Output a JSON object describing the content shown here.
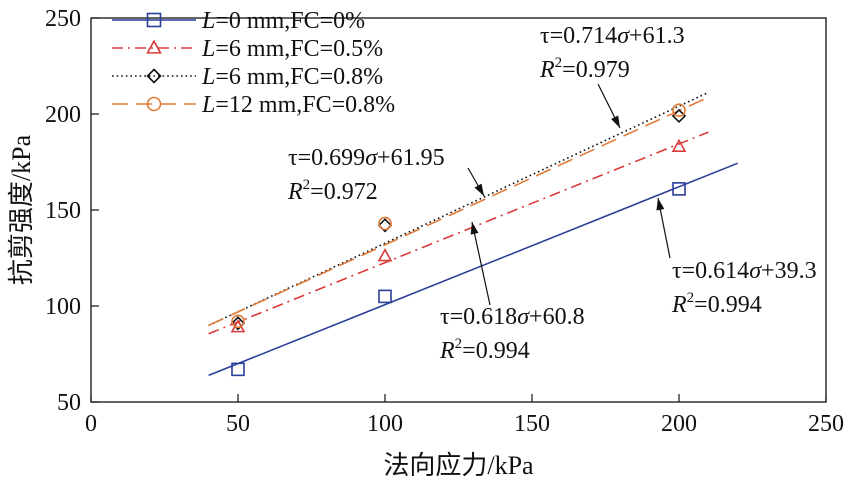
{
  "chart_data": {
    "type": "scatter",
    "xlabel": "法向应力/kPa",
    "ylabel": "抗剪强度/kPa",
    "xlim": [
      0,
      250
    ],
    "ylim": [
      50,
      250
    ],
    "xticks": [
      0,
      50,
      100,
      150,
      200,
      250
    ],
    "yticks": [
      50,
      100,
      150,
      200,
      250
    ],
    "grid": false,
    "legend_position": "top-left",
    "series": [
      {
        "name_italic": "L",
        "name_rest": "=0 mm,FC=0%",
        "marker": "square",
        "color": "#2a3f99",
        "line_style": "solid",
        "x": [
          50,
          100,
          200
        ],
        "y": [
          67,
          105,
          161
        ],
        "fit": {
          "slope": 0.614,
          "intercept": 39.3,
          "x_range": [
            40,
            220
          ]
        }
      },
      {
        "name_italic": "L",
        "name_rest": "=6 mm,FC=0.5%",
        "marker": "triangle",
        "color": "#d93a3a",
        "line_style": "dashdot",
        "x": [
          50,
          100,
          200
        ],
        "y": [
          89,
          126,
          183
        ],
        "fit": {
          "slope": 0.618,
          "intercept": 60.8,
          "x_range": [
            40,
            210
          ]
        }
      },
      {
        "name_italic": "L",
        "name_rest": "=6 mm,FC=0.8%",
        "marker": "diamond",
        "color": "#111111",
        "line_style": "dotted",
        "x": [
          50,
          100,
          200
        ],
        "y": [
          91,
          142,
          199
        ],
        "fit": {
          "slope": 0.714,
          "intercept": 61.3,
          "x_range": [
            40,
            210
          ]
        }
      },
      {
        "name_italic": "L",
        "name_rest": "=12 mm,FC=0.8%",
        "marker": "circle",
        "color": "#e07b39",
        "line_style": "longdash",
        "x": [
          50,
          100,
          200
        ],
        "y": [
          92,
          143,
          202
        ],
        "fit": {
          "slope": 0.699,
          "intercept": 61.95,
          "x_range": [
            40,
            210
          ]
        }
      }
    ],
    "annotations": [
      {
        "eq_pre": "τ=0.714",
        "eq_sym": "σ",
        "eq_post": "+61.3",
        "r2": "=0.979"
      },
      {
        "eq_pre": "τ=0.699",
        "eq_sym": "σ",
        "eq_post": "+61.95",
        "r2": "=0.972"
      },
      {
        "eq_pre": "τ=0.618",
        "eq_sym": "σ",
        "eq_post": "+60.8",
        "r2": "=0.994"
      },
      {
        "eq_pre": "τ=0.614",
        "eq_sym": "σ",
        "eq_post": "+39.3",
        "r2": "=0.994"
      }
    ]
  }
}
